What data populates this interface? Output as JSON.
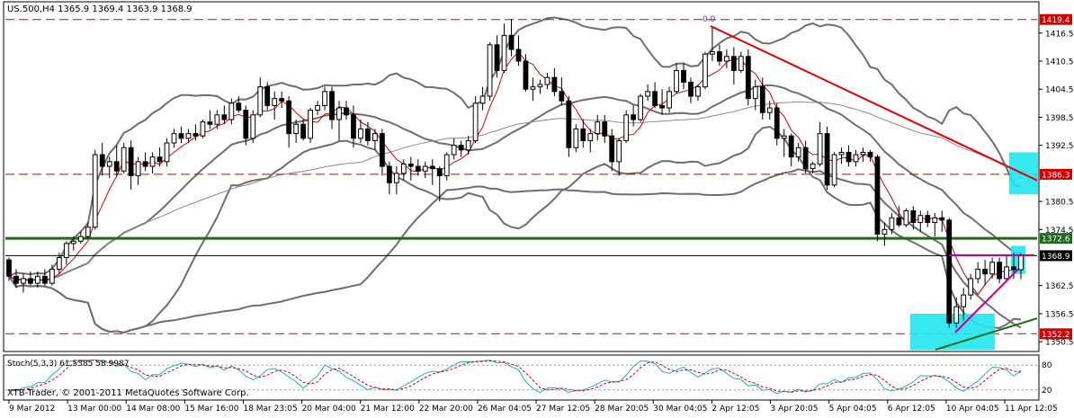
{
  "header": {
    "symbol_line": "US.500,H4  1365.9 1369.4 1363.9 1368.9"
  },
  "footer": {
    "copyright": "XTB-Trader, © 2001-2011 MetaQuotes Software Corp."
  },
  "colors": {
    "background": "#ffffff",
    "bull_candle": "#ffffff",
    "bear_candle": "#000000",
    "candle_outline": "#000000",
    "bollinger": "#6e6e6e",
    "ma_fast": "#d40000",
    "ma_slow": "#8a8a8a",
    "trend_red": "#e00000",
    "support_green": "#1e6b1e",
    "channel_magenta": "#c0009c",
    "highlight_cyan": "#22e5ee",
    "hline_red": "#d00000",
    "stoch_main": "#1fb1c8",
    "stoch_signal": "#d00000"
  },
  "chart_data": [
    {
      "type": "candlestick",
      "timeframe": "H4",
      "symbol": "US.500",
      "ohlc_last": {
        "open": 1365.9,
        "high": 1369.4,
        "low": 1363.9,
        "close": 1368.9
      },
      "y_ticks": [
        "1416.5",
        "1410.5",
        "1404.5",
        "1398.5",
        "1392.5",
        "1380.5",
        "1374.5",
        "1362.5",
        "1356.5",
        "1350.5"
      ],
      "ylim": [
        1348.8,
        1422.8
      ],
      "x_labels": [
        "9 Mar 2012",
        "13 Mar 00:00",
        "14 Mar 08:00",
        "15 Mar 16:00",
        "18 Mar 23:05",
        "20 Mar 04:00",
        "21 Mar 12:00",
        "22 Mar 20:00",
        "26 Mar 04:05",
        "27 Mar 12:05",
        "28 Mar 20:05",
        "30 Mar 04:05",
        "2 Apr 12:05",
        "3 Apr 20:05",
        "5 Apr 04:05",
        "6 Apr 12:05",
        "10 Apr 04:05",
        "11 Apr 12:05"
      ],
      "horizontal_lines": [
        {
          "price": 1419.4,
          "label": "1419.4",
          "style": "dashed",
          "color": "#d00000"
        },
        {
          "price": 1386.3,
          "label": "1386.3",
          "style": "dashed",
          "color": "#d00000"
        },
        {
          "price": 1372.6,
          "label": "1372.6",
          "style": "solid",
          "color": "#1e6b1e"
        },
        {
          "price": 1368.9,
          "label": "1368.9",
          "style": "solid",
          "color": "#000000"
        },
        {
          "price": 1352.2,
          "label": "1352.2",
          "style": "dashed",
          "color": "#d00000"
        }
      ],
      "fib_label": "0.0",
      "candles": [
        [
          1368.0,
          1368.5,
          1363.5,
          1364.5
        ],
        [
          1364.5,
          1366.0,
          1362.0,
          1363.0
        ],
        [
          1363.0,
          1365.0,
          1361.0,
          1364.0
        ],
        [
          1364.0,
          1365.5,
          1362.5,
          1363.0
        ],
        [
          1363.0,
          1365.5,
          1362.0,
          1364.5
        ],
        [
          1364.5,
          1366.0,
          1362.5,
          1363.0
        ],
        [
          1363.0,
          1367.0,
          1362.5,
          1366.0
        ],
        [
          1366.0,
          1369.5,
          1365.0,
          1368.5
        ],
        [
          1368.5,
          1372.0,
          1367.0,
          1371.5
        ],
        [
          1371.5,
          1373.0,
          1370.0,
          1372.0
        ],
        [
          1372.0,
          1374.0,
          1371.5,
          1373.0
        ],
        [
          1373.0,
          1376.0,
          1372.5,
          1375.0
        ],
        [
          1375.0,
          1391.5,
          1374.5,
          1390.5
        ],
        [
          1390.5,
          1393.0,
          1386.0,
          1388.0
        ],
        [
          1388.0,
          1390.0,
          1385.5,
          1389.0
        ],
        [
          1389.0,
          1392.5,
          1386.0,
          1387.0
        ],
        [
          1387.0,
          1393.0,
          1386.5,
          1392.0
        ],
        [
          1392.0,
          1393.5,
          1383.0,
          1386.0
        ],
        [
          1386.0,
          1390.0,
          1384.0,
          1389.0
        ],
        [
          1389.0,
          1391.0,
          1387.0,
          1388.0
        ],
        [
          1388.0,
          1391.0,
          1386.5,
          1390.0
        ],
        [
          1390.0,
          1392.0,
          1388.0,
          1389.0
        ],
        [
          1389.0,
          1394.0,
          1388.0,
          1393.0
        ],
        [
          1393.0,
          1396.0,
          1392.0,
          1395.0
        ],
        [
          1395.0,
          1396.5,
          1393.0,
          1394.0
        ],
        [
          1394.0,
          1396.0,
          1393.0,
          1395.0
        ],
        [
          1395.0,
          1397.0,
          1393.5,
          1394.5
        ],
        [
          1394.5,
          1398.0,
          1394.0,
          1397.5
        ],
        [
          1397.5,
          1400.0,
          1396.0,
          1397.0
        ],
        [
          1397.0,
          1400.0,
          1396.0,
          1399.0
        ],
        [
          1399.0,
          1401.0,
          1397.0,
          1398.0
        ],
        [
          1398.0,
          1402.5,
          1397.0,
          1401.5
        ],
        [
          1401.5,
          1403.0,
          1399.5,
          1400.0
        ],
        [
          1400.0,
          1401.0,
          1392.5,
          1394.0
        ],
        [
          1394.0,
          1400.0,
          1393.0,
          1399.0
        ],
        [
          1399.0,
          1407.0,
          1398.5,
          1405.0
        ],
        [
          1405.0,
          1406.0,
          1400.0,
          1401.0
        ],
        [
          1401.0,
          1404.0,
          1398.0,
          1402.5
        ],
        [
          1402.5,
          1404.0,
          1400.5,
          1402.0
        ],
        [
          1402.0,
          1403.0,
          1392.0,
          1395.0
        ],
        [
          1395.0,
          1398.0,
          1393.0,
          1397.0
        ],
        [
          1397.0,
          1398.0,
          1393.5,
          1394.0
        ],
        [
          1394.0,
          1400.5,
          1393.0,
          1400.0
        ],
        [
          1400.0,
          1402.0,
          1399.0,
          1401.0
        ],
        [
          1401.0,
          1405.0,
          1400.0,
          1404.0
        ],
        [
          1404.0,
          1405.0,
          1396.0,
          1398.0
        ],
        [
          1398.0,
          1402.0,
          1393.5,
          1400.5
        ],
        [
          1400.5,
          1402.0,
          1398.0,
          1399.0
        ],
        [
          1399.0,
          1401.0,
          1392.0,
          1394.0
        ],
        [
          1394.0,
          1398.0,
          1393.0,
          1396.0
        ],
        [
          1396.0,
          1397.5,
          1392.5,
          1393.5
        ],
        [
          1393.5,
          1396.0,
          1391.5,
          1395.0
        ],
        [
          1395.0,
          1396.0,
          1386.0,
          1388.0
        ],
        [
          1388.0,
          1389.0,
          1382.0,
          1384.5
        ],
        [
          1384.5,
          1388.0,
          1382.0,
          1386.5
        ],
        [
          1386.5,
          1389.5,
          1385.0,
          1388.5
        ],
        [
          1388.5,
          1390.0,
          1385.0,
          1388.0
        ],
        [
          1388.0,
          1389.5,
          1386.0,
          1387.0
        ],
        [
          1387.0,
          1389.0,
          1385.5,
          1388.0
        ],
        [
          1388.0,
          1389.5,
          1384.0,
          1387.5
        ],
        [
          1387.5,
          1388.0,
          1380.5,
          1386.0
        ],
        [
          1386.0,
          1391.0,
          1385.0,
          1390.5
        ],
        [
          1390.5,
          1394.0,
          1389.5,
          1392.5
        ],
        [
          1392.5,
          1393.5,
          1390.0,
          1391.5
        ],
        [
          1391.5,
          1394.5,
          1390.5,
          1393.5
        ],
        [
          1393.5,
          1403.0,
          1393.0,
          1401.5
        ],
        [
          1401.5,
          1405.0,
          1400.0,
          1403.0
        ],
        [
          1403.0,
          1414.5,
          1402.0,
          1414.0
        ],
        [
          1414.0,
          1416.0,
          1407.0,
          1408.5
        ],
        [
          1408.5,
          1418.5,
          1408.0,
          1416.0
        ],
        [
          1416.0,
          1419.5,
          1411.5,
          1413.0
        ],
        [
          1413.0,
          1416.0,
          1409.5,
          1410.5
        ],
        [
          1410.5,
          1412.0,
          1404.0,
          1404.5
        ],
        [
          1404.5,
          1407.0,
          1402.0,
          1405.0
        ],
        [
          1405.0,
          1406.5,
          1403.5,
          1405.5
        ],
        [
          1405.5,
          1408.0,
          1404.5,
          1407.0
        ],
        [
          1407.0,
          1409.0,
          1403.0,
          1404.0
        ],
        [
          1404.0,
          1407.0,
          1401.0,
          1402.0
        ],
        [
          1402.0,
          1403.0,
          1390.0,
          1392.0
        ],
        [
          1392.0,
          1397.0,
          1391.0,
          1396.0
        ],
        [
          1396.0,
          1398.0,
          1392.0,
          1393.5
        ],
        [
          1393.5,
          1396.0,
          1391.0,
          1395.0
        ],
        [
          1395.0,
          1399.0,
          1393.5,
          1397.5
        ],
        [
          1397.5,
          1399.0,
          1393.0,
          1394.5
        ],
        [
          1394.5,
          1396.0,
          1387.0,
          1389.0
        ],
        [
          1389.0,
          1394.0,
          1386.0,
          1393.5
        ],
        [
          1393.5,
          1400.0,
          1393.0,
          1399.0
        ],
        [
          1399.0,
          1401.0,
          1396.5,
          1398.0
        ],
        [
          1398.0,
          1403.5,
          1397.5,
          1403.0
        ],
        [
          1403.0,
          1405.5,
          1402.0,
          1404.0
        ],
        [
          1404.0,
          1406.0,
          1400.5,
          1401.0
        ],
        [
          1401.0,
          1404.5,
          1399.0,
          1400.5
        ],
        [
          1400.5,
          1405.0,
          1399.5,
          1404.0
        ],
        [
          1404.0,
          1410.0,
          1403.5,
          1408.5
        ],
        [
          1408.5,
          1410.0,
          1404.5,
          1406.0
        ],
        [
          1406.0,
          1407.0,
          1401.5,
          1403.0
        ],
        [
          1403.0,
          1405.5,
          1402.0,
          1405.0
        ],
        [
          1405.0,
          1412.5,
          1404.5,
          1412.0
        ],
        [
          1412.0,
          1418.0,
          1410.5,
          1412.5
        ],
        [
          1412.5,
          1414.0,
          1409.5,
          1410.5
        ],
        [
          1410.5,
          1413.0,
          1409.0,
          1411.5
        ],
        [
          1411.5,
          1413.5,
          1405.5,
          1408.5
        ],
        [
          1408.5,
          1412.5,
          1408.0,
          1411.5
        ],
        [
          1411.5,
          1413.0,
          1401.0,
          1402.5
        ],
        [
          1402.5,
          1406.5,
          1400.0,
          1405.0
        ],
        [
          1405.0,
          1407.0,
          1398.0,
          1399.5
        ],
        [
          1399.5,
          1402.0,
          1398.0,
          1400.5
        ],
        [
          1400.5,
          1401.5,
          1392.5,
          1394.0
        ],
        [
          1394.0,
          1396.0,
          1390.0,
          1394.5
        ],
        [
          1394.5,
          1395.0,
          1388.0,
          1390.0
        ],
        [
          1390.0,
          1393.0,
          1389.0,
          1392.0
        ],
        [
          1392.0,
          1393.5,
          1386.5,
          1387.5
        ],
        [
          1387.5,
          1389.0,
          1386.5,
          1388.5
        ],
        [
          1388.5,
          1397.5,
          1388.0,
          1395.0
        ],
        [
          1395.0,
          1396.5,
          1383.0,
          1384.0
        ],
        [
          1384.0,
          1391.0,
          1383.5,
          1390.5
        ],
        [
          1390.5,
          1392.0,
          1388.5,
          1391.0
        ],
        [
          1391.0,
          1392.5,
          1388.0,
          1389.0
        ],
        [
          1389.0,
          1391.5,
          1388.0,
          1390.5
        ],
        [
          1390.5,
          1392.0,
          1389.0,
          1391.0
        ],
        [
          1391.0,
          1391.5,
          1389.0,
          1390.0
        ],
        [
          1390.0,
          1390.5,
          1372.0,
          1373.5
        ],
        [
          1373.5,
          1376.0,
          1371.0,
          1374.5
        ],
        [
          1374.5,
          1378.0,
          1373.5,
          1377.0
        ],
        [
          1377.0,
          1379.5,
          1375.0,
          1375.5
        ],
        [
          1375.5,
          1379.0,
          1375.0,
          1378.5
        ],
        [
          1378.5,
          1379.5,
          1374.5,
          1376.0
        ],
        [
          1376.0,
          1378.5,
          1374.0,
          1377.5
        ],
        [
          1377.5,
          1378.5,
          1375.0,
          1376.0
        ],
        [
          1376.0,
          1378.0,
          1373.0,
          1377.0
        ],
        [
          1377.0,
          1378.5,
          1374.0,
          1376.5
        ],
        [
          1376.5,
          1377.0,
          1353.5,
          1354.5
        ],
        [
          1354.5,
          1360.0,
          1353.5,
          1358.0
        ],
        [
          1358.0,
          1362.0,
          1355.0,
          1360.5
        ],
        [
          1360.5,
          1365.0,
          1359.5,
          1364.0
        ],
        [
          1364.0,
          1367.5,
          1363.0,
          1366.0
        ],
        [
          1366.0,
          1368.0,
          1362.5,
          1365.0
        ],
        [
          1365.0,
          1368.5,
          1364.0,
          1367.5
        ],
        [
          1367.5,
          1368.5,
          1363.0,
          1364.0
        ],
        [
          1364.0,
          1369.0,
          1363.5,
          1366.5
        ],
        [
          1366.5,
          1369.5,
          1364.0,
          1365.9
        ],
        [
          1365.9,
          1369.4,
          1363.9,
          1368.9
        ]
      ]
    },
    {
      "type": "line",
      "name": "Stoch(5,3,3)",
      "label": "Stoch(5,3,3) 61.5385 58.9987",
      "main_value": 61.5385,
      "signal_value": 58.9987,
      "y_ticks": [
        "80",
        "20"
      ],
      "ylim": [
        0,
        100
      ]
    }
  ]
}
